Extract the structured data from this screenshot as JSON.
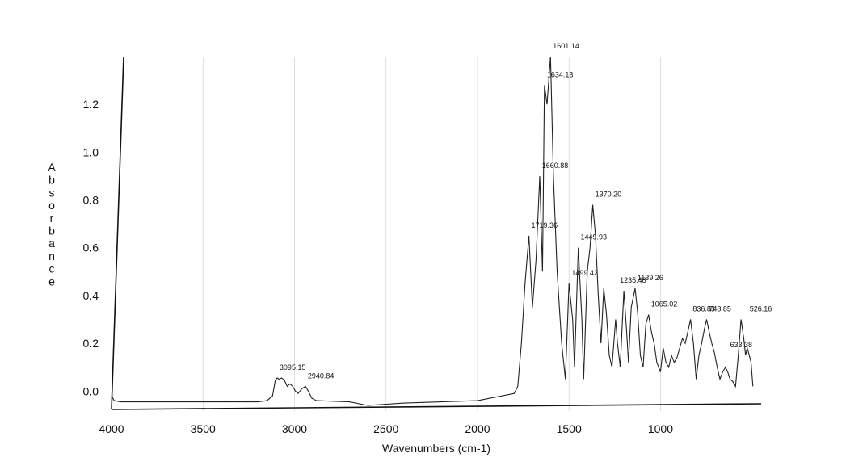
{
  "chart_data": {
    "type": "line",
    "title": "",
    "xlabel": "Wavenumbers (cm-1)",
    "ylabel": "Absorbance",
    "xlim": [
      4000,
      450
    ],
    "ylim": [
      -0.07,
      1.4
    ],
    "x_reversed": true,
    "grid": "vertical",
    "legend": "none",
    "line_color": "#222222",
    "x_ticks": [
      4000,
      3500,
      3000,
      2500,
      2000,
      1500,
      1000
    ],
    "y_ticks": [
      0.0,
      0.2,
      0.4,
      0.6,
      0.8,
      1.0,
      1.2
    ],
    "series": [
      {
        "points": [
          [
            4000,
            -0.02
          ],
          [
            3985,
            -0.04
          ],
          [
            3950,
            -0.045
          ],
          [
            3500,
            -0.045
          ],
          [
            3200,
            -0.045
          ],
          [
            3150,
            -0.04
          ],
          [
            3120,
            -0.02
          ],
          [
            3105,
            0.045
          ],
          [
            3095,
            0.055
          ],
          [
            3085,
            0.05
          ],
          [
            3070,
            0.055
          ],
          [
            3055,
            0.045
          ],
          [
            3040,
            0.02
          ],
          [
            3025,
            0.03
          ],
          [
            3010,
            0.02
          ],
          [
            2995,
            0.0
          ],
          [
            2980,
            -0.01
          ],
          [
            2960,
            0.01
          ],
          [
            2940,
            0.02
          ],
          [
            2925,
            0.0
          ],
          [
            2905,
            -0.03
          ],
          [
            2880,
            -0.04
          ],
          [
            2700,
            -0.045
          ],
          [
            2600,
            -0.06
          ],
          [
            2400,
            -0.05
          ],
          [
            2000,
            -0.04
          ],
          [
            1800,
            -0.01
          ],
          [
            1780,
            0.02
          ],
          [
            1760,
            0.2
          ],
          [
            1740,
            0.45
          ],
          [
            1719,
            0.65
          ],
          [
            1700,
            0.35
          ],
          [
            1680,
            0.55
          ],
          [
            1660,
            0.9
          ],
          [
            1645,
            0.5
          ],
          [
            1634,
            1.28
          ],
          [
            1620,
            1.2
          ],
          [
            1601,
            1.4
          ],
          [
            1585,
            0.9
          ],
          [
            1565,
            0.5
          ],
          [
            1540,
            0.2
          ],
          [
            1520,
            0.05
          ],
          [
            1500,
            0.45
          ],
          [
            1480,
            0.3
          ],
          [
            1470,
            0.1
          ],
          [
            1449,
            0.6
          ],
          [
            1430,
            0.3
          ],
          [
            1420,
            0.05
          ],
          [
            1400,
            0.5
          ],
          [
            1385,
            0.6
          ],
          [
            1370,
            0.78
          ],
          [
            1355,
            0.65
          ],
          [
            1340,
            0.4
          ],
          [
            1325,
            0.2
          ],
          [
            1310,
            0.43
          ],
          [
            1295,
            0.32
          ],
          [
            1280,
            0.15
          ],
          [
            1265,
            0.1
          ],
          [
            1245,
            0.3
          ],
          [
            1235,
            0.2
          ],
          [
            1220,
            0.1
          ],
          [
            1200,
            0.42
          ],
          [
            1185,
            0.25
          ],
          [
            1175,
            0.12
          ],
          [
            1160,
            0.35
          ],
          [
            1139,
            0.43
          ],
          [
            1125,
            0.33
          ],
          [
            1110,
            0.15
          ],
          [
            1095,
            0.1
          ],
          [
            1080,
            0.28
          ],
          [
            1065,
            0.32
          ],
          [
            1050,
            0.25
          ],
          [
            1035,
            0.2
          ],
          [
            1020,
            0.12
          ],
          [
            1000,
            0.08
          ],
          [
            985,
            0.18
          ],
          [
            970,
            0.12
          ],
          [
            955,
            0.1
          ],
          [
            940,
            0.15
          ],
          [
            925,
            0.12
          ],
          [
            910,
            0.14
          ],
          [
            895,
            0.18
          ],
          [
            880,
            0.22
          ],
          [
            865,
            0.2
          ],
          [
            850,
            0.25
          ],
          [
            836,
            0.3
          ],
          [
            820,
            0.2
          ],
          [
            805,
            0.05
          ],
          [
            790,
            0.15
          ],
          [
            775,
            0.2
          ],
          [
            760,
            0.26
          ],
          [
            748,
            0.3
          ],
          [
            735,
            0.25
          ],
          [
            720,
            0.2
          ],
          [
            705,
            0.16
          ],
          [
            690,
            0.1
          ],
          [
            675,
            0.05
          ],
          [
            660,
            0.08
          ],
          [
            645,
            0.1
          ],
          [
            633,
            0.08
          ],
          [
            620,
            0.05
          ],
          [
            605,
            0.04
          ],
          [
            590,
            0.02
          ],
          [
            575,
            0.15
          ],
          [
            560,
            0.3
          ],
          [
            545,
            0.22
          ],
          [
            535,
            0.15
          ],
          [
            526,
            0.18
          ],
          [
            515,
            0.15
          ],
          [
            505,
            0.12
          ],
          [
            495,
            0.02
          ]
        ]
      }
    ],
    "annotations": [
      {
        "text": "1601.14",
        "x": 1601.14,
        "y": 1.4
      },
      {
        "text": "1634.13",
        "x": 1634.13,
        "y": 1.28
      },
      {
        "text": "1660.88",
        "x": 1660.88,
        "y": 0.9
      },
      {
        "text": "1719.36",
        "x": 1719.36,
        "y": 0.65
      },
      {
        "text": "1449.93",
        "x": 1449.93,
        "y": 0.6
      },
      {
        "text": "1499.42",
        "x": 1499.42,
        "y": 0.45
      },
      {
        "text": "1370.20",
        "x": 1370.2,
        "y": 0.78
      },
      {
        "text": "1139.26",
        "x": 1139.26,
        "y": 0.43
      },
      {
        "text": "1235.48",
        "x": 1235.48,
        "y": 0.42
      },
      {
        "text": "1065.02",
        "x": 1065.02,
        "y": 0.32
      },
      {
        "text": "836.83",
        "x": 836.83,
        "y": 0.3
      },
      {
        "text": "748.85",
        "x": 748.85,
        "y": 0.3
      },
      {
        "text": "526.16",
        "x": 526.16,
        "y": 0.3
      },
      {
        "text": "633.38",
        "x": 633.38,
        "y": 0.15
      },
      {
        "text": "3095.15",
        "x": 3095.15,
        "y": 0.055
      },
      {
        "text": "2940.84",
        "x": 2940.84,
        "y": 0.02
      }
    ]
  }
}
